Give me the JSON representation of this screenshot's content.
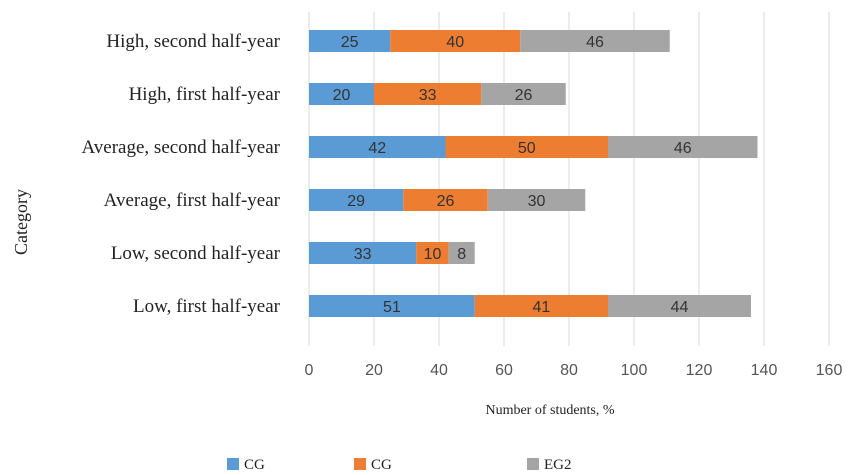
{
  "chart_data": {
    "type": "bar",
    "orientation": "horizontal",
    "stacked": true,
    "categories": [
      "High, second half-year",
      "High, first half-year",
      "Average, second half-year",
      "Average, first half-year",
      "Low, second half-year",
      "Low, first half-year"
    ],
    "series": [
      {
        "name": "CG",
        "color": "#5b9bd5",
        "values": [
          25,
          20,
          42,
          29,
          33,
          51
        ]
      },
      {
        "name": "CG",
        "color": "#ed7d31",
        "values": [
          40,
          33,
          50,
          26,
          10,
          41
        ]
      },
      {
        "name": "EG2",
        "color": "#a5a5a5",
        "values": [
          46,
          26,
          46,
          30,
          8,
          44
        ]
      }
    ],
    "xlabel": "Number of students, %",
    "ylabel": "Category",
    "xlim": [
      0,
      160
    ],
    "xticks": [
      0,
      20,
      40,
      60,
      80,
      100,
      120,
      140,
      160
    ],
    "grid": "vertical",
    "legend": "bottom"
  }
}
